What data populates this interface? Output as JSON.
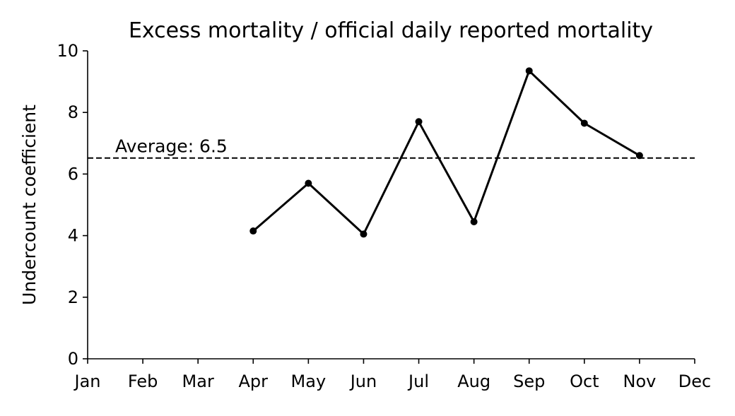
{
  "chart_data": {
    "type": "line",
    "title": "Excess mortality / official daily reported mortality",
    "xlabel": "",
    "ylabel": "Undercount coefficient",
    "categories": [
      "Jan",
      "Feb",
      "Mar",
      "Apr",
      "May",
      "Jun",
      "Jul",
      "Aug",
      "Sep",
      "Oct",
      "Nov",
      "Dec"
    ],
    "xlim": [
      0,
      11
    ],
    "ylim": [
      0,
      10
    ],
    "yticks": [
      0,
      2,
      4,
      6,
      8,
      10
    ],
    "grid": false,
    "series": [
      {
        "x": [
          3,
          4,
          5,
          6,
          7,
          8,
          9,
          10
        ],
        "values": [
          4.15,
          5.7,
          4.05,
          7.7,
          4.45,
          9.35,
          7.65,
          6.6
        ],
        "color": "#000000",
        "style": "solid-with-markers"
      }
    ],
    "reference_line": {
      "value": 6.52,
      "style": "dashed",
      "label": "Average: 6.5"
    }
  }
}
